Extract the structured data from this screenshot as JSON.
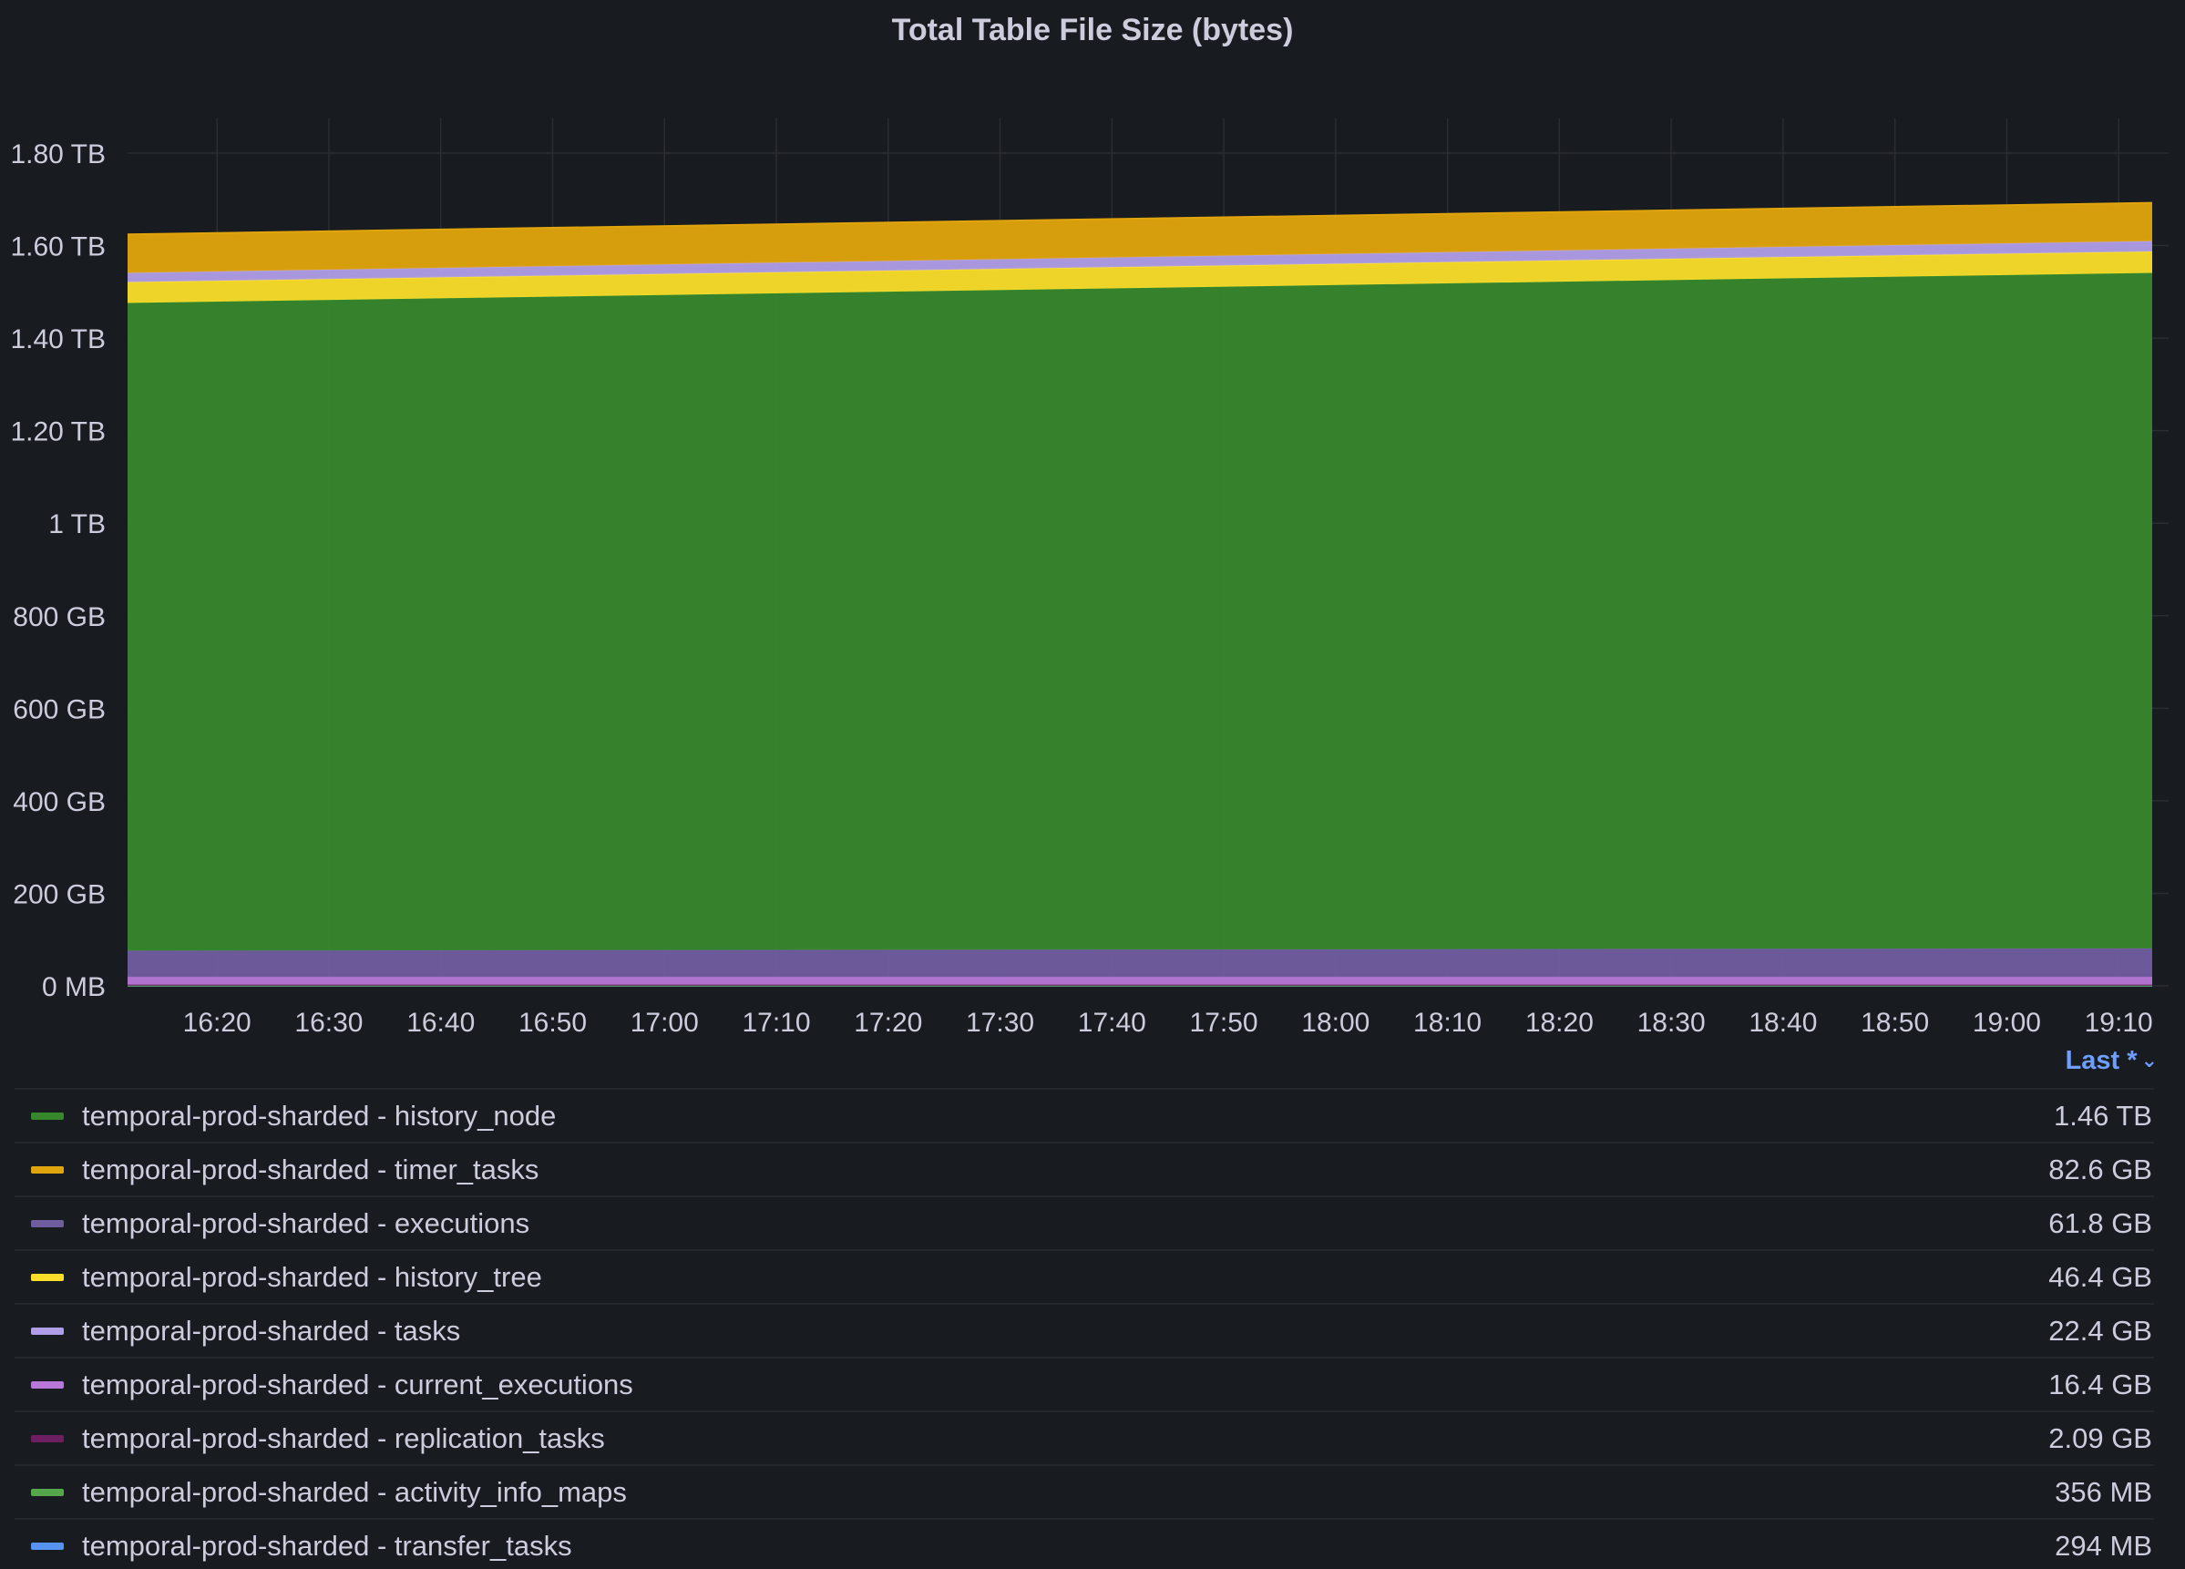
{
  "panel": {
    "title": "Total Table File Size (bytes)",
    "legend_sort_label": "Last *",
    "chevron_glyph": "⌄"
  },
  "legend": [
    {
      "name": "temporal-prod-sharded - history_node",
      "value": "1.46 TB",
      "color": "#37872d"
    },
    {
      "name": "temporal-prod-sharded - timer_tasks",
      "value": "82.6 GB",
      "color": "#e0a40d"
    },
    {
      "name": "temporal-prod-sharded - executions",
      "value": "61.8 GB",
      "color": "#705da0"
    },
    {
      "name": "temporal-prod-sharded - history_tree",
      "value": "46.4 GB",
      "color": "#fade2a"
    },
    {
      "name": "temporal-prod-sharded - tasks",
      "value": "22.4 GB",
      "color": "#b09ee8"
    },
    {
      "name": "temporal-prod-sharded - current_executions",
      "value": "16.4 GB",
      "color": "#b877d9"
    },
    {
      "name": "temporal-prod-sharded - replication_tasks",
      "value": "2.09 GB",
      "color": "#6d1f62"
    },
    {
      "name": "temporal-prod-sharded - activity_info_maps",
      "value": "356 MB",
      "color": "#56a64b"
    },
    {
      "name": "temporal-prod-sharded - transfer_tasks",
      "value": "294 MB",
      "color": "#5794f2"
    }
  ],
  "chart_data": {
    "type": "area",
    "stacked": true,
    "title": "Total Table File Size (bytes)",
    "x_ticks": [
      "16:20",
      "16:30",
      "16:40",
      "16:50",
      "17:00",
      "17:10",
      "17:20",
      "17:30",
      "17:40",
      "17:50",
      "18:00",
      "18:10",
      "18:20",
      "18:30",
      "18:40",
      "18:50",
      "19:00",
      "19:10"
    ],
    "x_range": [
      "16:12",
      "19:13"
    ],
    "y_ticks": [
      "0 MB",
      "200 GB",
      "400 GB",
      "600 GB",
      "800 GB",
      "1 TB",
      "1.20 TB",
      "1.40 TB",
      "1.60 TB",
      "1.80 TB"
    ],
    "y_unit": "GB",
    "y_range": [
      0,
      1800
    ],
    "grid": true,
    "legend_position": "bottom",
    "x": [
      "16:12",
      "19:13"
    ],
    "series_stack_order": [
      "transfer_tasks",
      "activity_info_maps",
      "replication_tasks",
      "current_executions",
      "executions",
      "history_node",
      "history_tree",
      "tasks",
      "timer_tasks"
    ],
    "series": [
      {
        "name": "temporal-prod-sharded - transfer_tasks",
        "color": "#5794f2",
        "values": [
          0.3,
          0.3
        ]
      },
      {
        "name": "temporal-prod-sharded - activity_info_maps",
        "color": "#56a64b",
        "values": [
          0.36,
          0.36
        ]
      },
      {
        "name": "temporal-prod-sharded - replication_tasks",
        "color": "#6d1f62",
        "values": [
          2.09,
          2.09
        ]
      },
      {
        "name": "temporal-prod-sharded - current_executions",
        "color": "#b877d9",
        "values": [
          16.4,
          16.4
        ]
      },
      {
        "name": "temporal-prod-sharded - executions",
        "color": "#705da0",
        "values": [
          57,
          61.8
        ]
      },
      {
        "name": "temporal-prod-sharded - history_node",
        "color": "#37872d",
        "values": [
          1400,
          1460
        ]
      },
      {
        "name": "temporal-prod-sharded - history_tree",
        "color": "#fade2a",
        "values": [
          45,
          46.4
        ]
      },
      {
        "name": "temporal-prod-sharded - tasks",
        "color": "#b09ee8",
        "values": [
          20,
          22.4
        ]
      },
      {
        "name": "temporal-prod-sharded - timer_tasks",
        "color": "#e0a40d",
        "values": [
          83,
          82.6
        ]
      }
    ]
  }
}
